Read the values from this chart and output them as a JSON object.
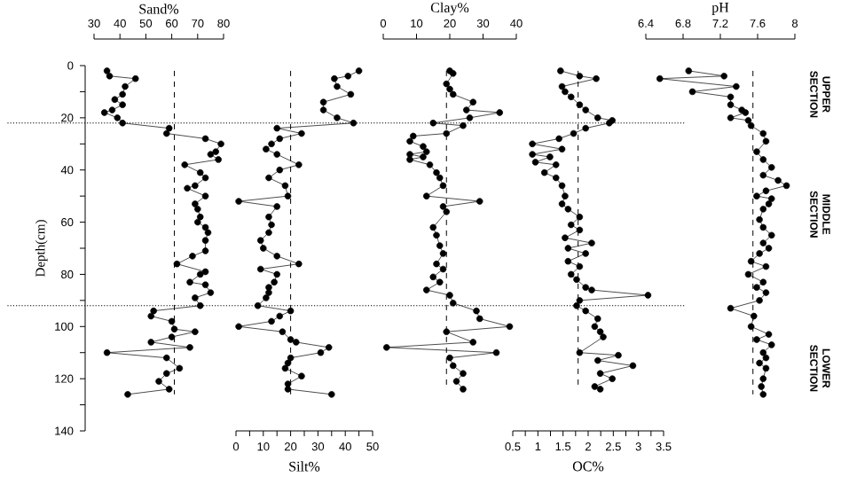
{
  "chart_data": [
    {
      "type": "line",
      "xlabel": "Sand%",
      "ylabel": "Depth(cm)",
      "marker": "circle",
      "xlim": [
        30,
        80
      ],
      "xticks": [
        30,
        40,
        50,
        60,
        70,
        80
      ],
      "ylim": [
        140,
        0
      ],
      "yticks": [
        0,
        {
          "value": 10,
          "label": null
        },
        20,
        {
          "value": 30,
          "label": null
        },
        40,
        {
          "value": 50,
          "label": null
        },
        60,
        {
          "value": 70,
          "label": null
        },
        80,
        {
          "value": 90,
          "label": null
        },
        100,
        {
          "value": 110,
          "label": null
        },
        120,
        {
          "value": 130,
          "label": null
        },
        140
      ],
      "series": [
        {
          "color": "#000000",
          "x": [
            35,
            36,
            46,
            42,
            41,
            38,
            41,
            37,
            34,
            39,
            41,
            59,
            58,
            73,
            79,
            77,
            75,
            78,
            65,
            71,
            73,
            69,
            66,
            73,
            69,
            70,
            71,
            70,
            73,
            74,
            73,
            73,
            68,
            62,
            73,
            71,
            67,
            73,
            75,
            69,
            71,
            53,
            52,
            60,
            61,
            69,
            60,
            52,
            67,
            35,
            58,
            63,
            58,
            55,
            59,
            43
          ],
          "values": [
            2,
            4,
            5,
            8,
            11,
            13,
            15,
            17,
            18,
            20,
            22,
            24,
            26,
            28,
            30,
            33,
            34,
            36,
            38,
            41,
            43,
            46,
            47,
            50,
            53,
            55,
            58,
            60,
            62,
            64,
            67,
            71,
            73,
            76,
            79,
            80,
            83,
            84,
            87,
            89,
            92,
            94,
            96,
            98,
            101,
            102,
            104,
            106,
            108,
            110,
            112,
            116,
            118,
            121,
            124,
            126
          ]
        }
      ],
      "ref_lines": [
        {
          "axis": "x",
          "value": 61,
          "line_style": "dashed"
        },
        {
          "axis": "y",
          "value": 22,
          "line_style": "dotted"
        },
        {
          "axis": "y",
          "value": 92,
          "line_style": "dotted"
        }
      ],
      "annotations": [
        "UPPER SECTION",
        "MIDDLE SECTION",
        "LOWER SECTION"
      ]
    },
    {
      "type": "line",
      "xlabel": "Silt%",
      "marker": "circle",
      "tick_labels": "x",
      "xlim": [
        0,
        50
      ],
      "xticks": [
        0,
        {
          "value": 5,
          "label": null
        },
        10,
        {
          "value": 15,
          "label": null
        },
        20,
        {
          "value": 25,
          "label": null
        },
        30,
        {
          "value": 35,
          "label": null
        },
        40,
        {
          "value": 45,
          "label": null
        },
        50
      ],
      "ylim": [
        140,
        0
      ],
      "series": [
        {
          "color": "#000000",
          "x": [
            45,
            41,
            36,
            37,
            42,
            32,
            32,
            37,
            43,
            15,
            24,
            16,
            13,
            11,
            15,
            23,
            16,
            12,
            18,
            19,
            1,
            15,
            12,
            13,
            12,
            9,
            10,
            15,
            23,
            9,
            15,
            14,
            12,
            12,
            11,
            8,
            20,
            16,
            13,
            1,
            17,
            20,
            22,
            34,
            31,
            20,
            19,
            18,
            24,
            19,
            19,
            35
          ],
          "values": [
            2,
            4,
            5,
            8,
            11,
            14,
            17,
            20,
            22,
            24,
            26,
            28,
            30,
            32,
            34,
            38,
            40,
            43,
            46,
            50,
            52,
            54,
            58,
            61,
            64,
            67,
            70,
            73,
            76,
            78,
            80,
            83,
            85,
            87,
            89,
            92,
            94,
            96,
            98,
            100,
            102,
            105,
            106,
            108,
            110,
            112,
            114,
            116,
            119,
            122,
            124,
            126
          ]
        }
      ],
      "ref_lines": [
        {
          "axis": "x",
          "value": 20,
          "line_style": "dashed"
        }
      ]
    },
    {
      "type": "line",
      "xlabel": "Clay%",
      "marker": "circle",
      "tick_labels": "x",
      "xlim": [
        0,
        40
      ],
      "xticks": [
        0,
        10,
        20,
        30,
        40
      ],
      "ylim": [
        140,
        0
      ],
      "series": [
        {
          "color": "#000000",
          "x": [
            20,
            21,
            19,
            20,
            21,
            27,
            25,
            35,
            26,
            15,
            24,
            19,
            9,
            8,
            12,
            13,
            8,
            12,
            8,
            14,
            16,
            17,
            18,
            13,
            29,
            18,
            19,
            15,
            16,
            17,
            18,
            16,
            18,
            15,
            17,
            13,
            20,
            21,
            28,
            29,
            38,
            19,
            27,
            1,
            34,
            20,
            21,
            24,
            22,
            24
          ],
          "values": [
            2,
            3,
            7,
            9,
            11,
            14,
            17,
            18,
            20,
            22,
            23,
            26,
            27,
            29,
            31,
            33,
            34,
            35,
            36,
            38,
            41,
            43,
            46,
            50,
            52,
            54,
            56,
            62,
            65,
            69,
            72,
            76,
            78,
            81,
            83,
            86,
            88,
            91,
            94,
            97,
            100,
            102,
            106,
            108,
            110,
            112,
            115,
            118,
            121,
            124
          ]
        }
      ],
      "ref_lines": [
        {
          "axis": "x",
          "value": 19,
          "line_style": "dashed"
        }
      ]
    },
    {
      "type": "line",
      "xlabel": "OC%",
      "marker": "circle",
      "tick_labels": "x",
      "xlim": [
        0.5,
        3.5
      ],
      "xticks": [
        0.5,
        {
          "value": 0.75,
          "label": null
        },
        1,
        {
          "value": 1.25,
          "label": null
        },
        1.5,
        {
          "value": 1.75,
          "label": null
        },
        2,
        {
          "value": 2.25,
          "label": null
        },
        2.5,
        {
          "value": 2.75,
          "label": null
        },
        3,
        {
          "value": 3.25,
          "label": null
        },
        3.5
      ],
      "ylim": [
        140,
        0
      ],
      "series": [
        {
          "color": "#000000",
          "x": [
            1.45,
            1.83,
            2.16,
            1.48,
            1.54,
            1.66,
            1.83,
            1.95,
            2.19,
            2.48,
            2.42,
            1.95,
            1.71,
            1.42,
            0.89,
            1.48,
            0.89,
            1.24,
            0.95,
            1.36,
            1.13,
            1.36,
            1.48,
            1.54,
            1.48,
            1.6,
            1.83,
            1.66,
            1.83,
            1.54,
            2.07,
            1.6,
            1.95,
            1.6,
            1.83,
            1.66,
            1.77,
            1.95,
            2.07,
            3.19,
            1.83,
            1.77,
            1.95,
            2.19,
            2.13,
            2.24,
            2.3,
            1.83,
            2.6,
            2.19,
            2.89,
            2.24,
            2.48,
            2.13,
            2.24
          ],
          "values": [
            2,
            4,
            5,
            8,
            10,
            12,
            15,
            17,
            20,
            21,
            22,
            24,
            26,
            28,
            30,
            32,
            34,
            35,
            37,
            38,
            41,
            43,
            46,
            50,
            53,
            55,
            58,
            61,
            63,
            66,
            68,
            70,
            72,
            75,
            77,
            80,
            82,
            85,
            86,
            88,
            90,
            92,
            94,
            97,
            100,
            102,
            104,
            110,
            111,
            113,
            115,
            118,
            120,
            123,
            124
          ]
        }
      ],
      "ref_lines": [
        {
          "axis": "x",
          "value": 1.8,
          "line_style": "dashed"
        }
      ]
    },
    {
      "type": "line",
      "xlabel": "pH",
      "marker": "circle",
      "tick_labels": "x",
      "xlim": [
        6.4,
        8
      ],
      "xticks": [
        6.4,
        6.8,
        7.2,
        7.6,
        8
      ],
      "ylim": [
        140,
        0
      ],
      "series": [
        {
          "color": "#000000",
          "x": [
            6.86,
            7.24,
            6.55,
            7.37,
            6.9,
            7.31,
            7.31,
            7.43,
            7.47,
            7.31,
            7.5,
            7.53,
            7.66,
            7.69,
            7.59,
            7.66,
            7.75,
            7.66,
            7.82,
            7.91,
            7.69,
            7.59,
            7.75,
            7.72,
            7.66,
            7.62,
            7.66,
            7.75,
            7.66,
            7.72,
            7.62,
            7.53,
            7.69,
            7.5,
            7.66,
            7.59,
            7.69,
            7.62,
            7.31,
            7.56,
            7.53,
            7.72,
            7.59,
            7.75,
            7.66,
            7.69,
            7.62,
            7.69,
            7.66,
            7.64,
            7.66
          ],
          "values": [
            2,
            4,
            5,
            8,
            10,
            12,
            15,
            17,
            18,
            20,
            21,
            23,
            26,
            29,
            33,
            36,
            39,
            42,
            44,
            46,
            48,
            50,
            51,
            53,
            55,
            59,
            62,
            65,
            68,
            70,
            72,
            75,
            77,
            80,
            83,
            85,
            87,
            90,
            93,
            96,
            100,
            103,
            105,
            107,
            110,
            112,
            114,
            116,
            120,
            123,
            126
          ]
        }
      ],
      "ref_lines": [
        {
          "axis": "x",
          "value": 7.55,
          "line_style": "dashed"
        }
      ]
    }
  ]
}
